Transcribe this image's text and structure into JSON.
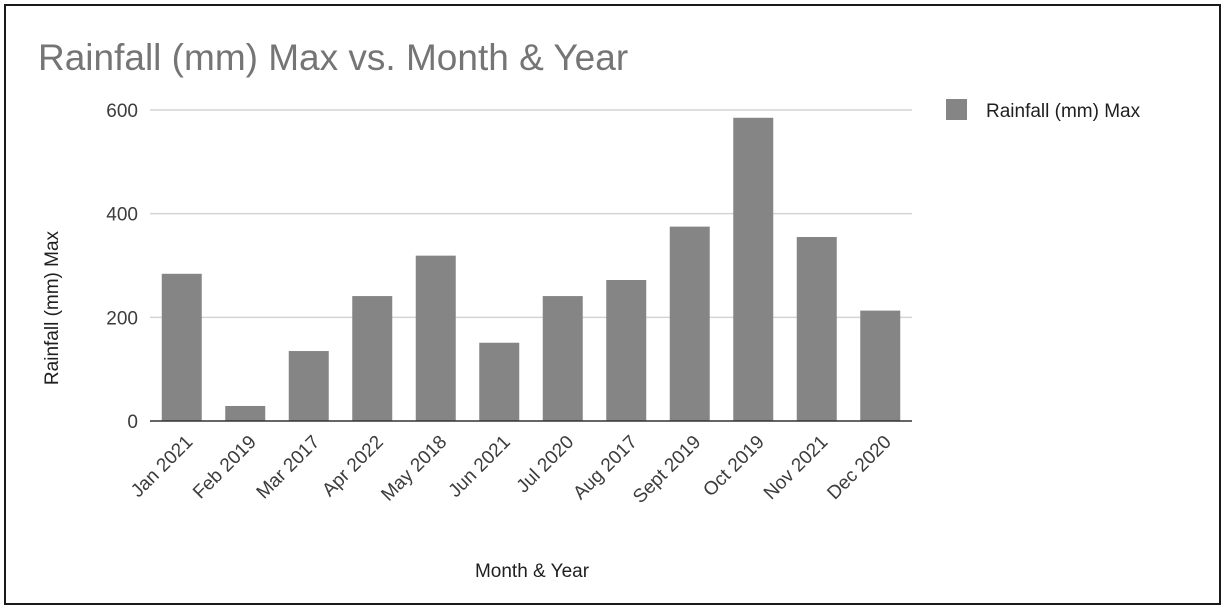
{
  "chart_data": {
    "type": "bar",
    "title": "Rainfall (mm) Max vs. Month & Year",
    "xlabel": "Month & Year",
    "ylabel": "Rainfall (mm) Max",
    "categories": [
      "Jan 2021",
      "Feb 2019",
      "Mar 2017",
      "Apr 2022",
      "May 2018",
      "Jun 2021",
      "Jul 2020",
      "Aug 2017",
      "Sept 2019",
      "Oct 2019",
      "Nov 2021",
      "Dec 2020"
    ],
    "series": [
      {
        "name": "Rainfall (mm) Max",
        "color": "#858585",
        "values": [
          284,
          29,
          135,
          241,
          319,
          151,
          241,
          272,
          375,
          585,
          355,
          213
        ]
      }
    ],
    "ylim": [
      0,
      600
    ],
    "yticks": [
      0,
      200,
      400,
      600
    ],
    "grid": true,
    "legend": "right"
  }
}
